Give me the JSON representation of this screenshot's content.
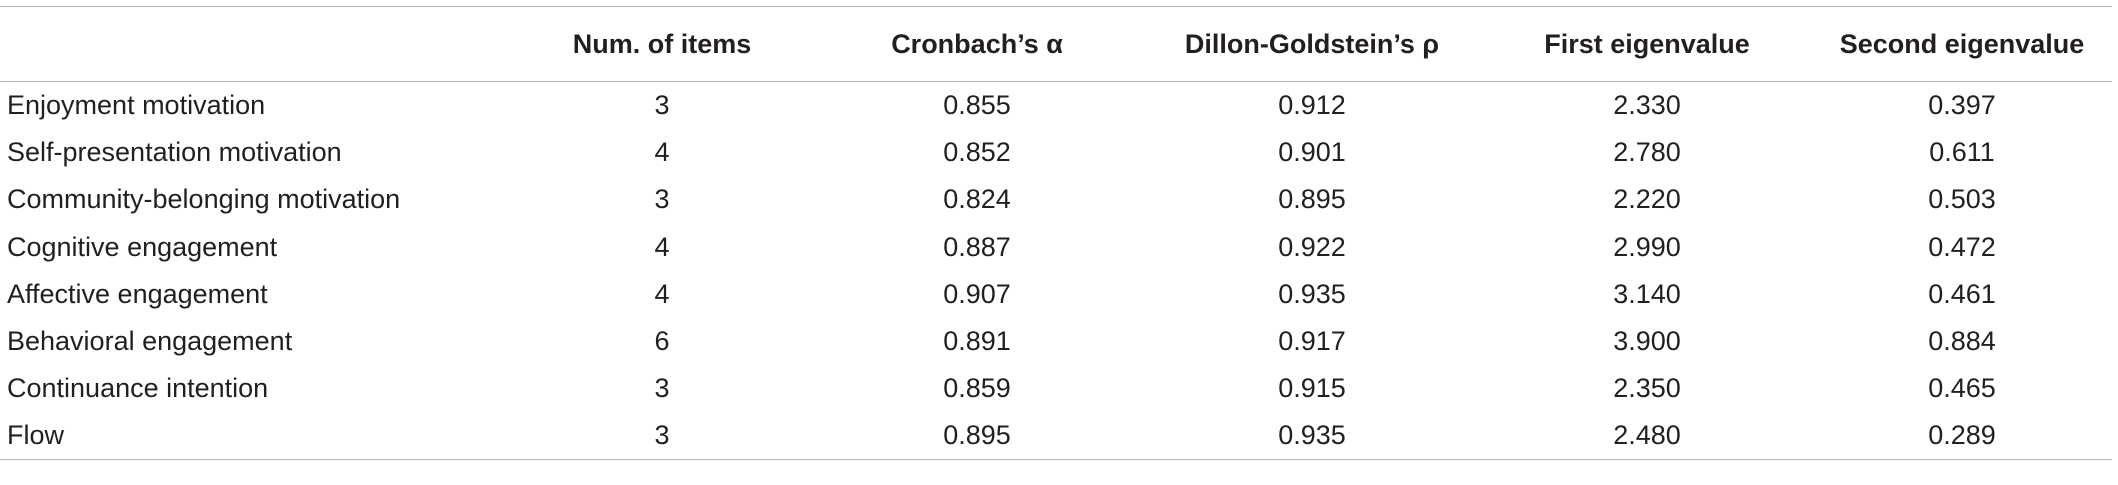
{
  "table": {
    "headers": [
      "",
      "Num. of items",
      "Cronbach’s α",
      "Dillon-Goldstein’s ρ",
      "First eigenvalue",
      "Second eigenvalue"
    ],
    "rows": [
      [
        "Enjoyment motivation",
        "3",
        "0.855",
        "0.912",
        "2.330",
        "0.397"
      ],
      [
        "Self-presentation motivation",
        "4",
        "0.852",
        "0.901",
        "2.780",
        "0.611"
      ],
      [
        "Community-belonging motivation",
        "3",
        "0.824",
        "0.895",
        "2.220",
        "0.503"
      ],
      [
        "Cognitive engagement",
        "4",
        "0.887",
        "0.922",
        "2.990",
        "0.472"
      ],
      [
        "Affective engagement",
        "4",
        "0.907",
        "0.935",
        "3.140",
        "0.461"
      ],
      [
        "Behavioral engagement",
        "6",
        "0.891",
        "0.917",
        "3.900",
        "0.884"
      ],
      [
        "Continuance intention",
        "3",
        "0.859",
        "0.915",
        "2.350",
        "0.465"
      ],
      [
        "Flow",
        "3",
        "0.895",
        "0.935",
        "2.480",
        "0.289"
      ]
    ]
  }
}
